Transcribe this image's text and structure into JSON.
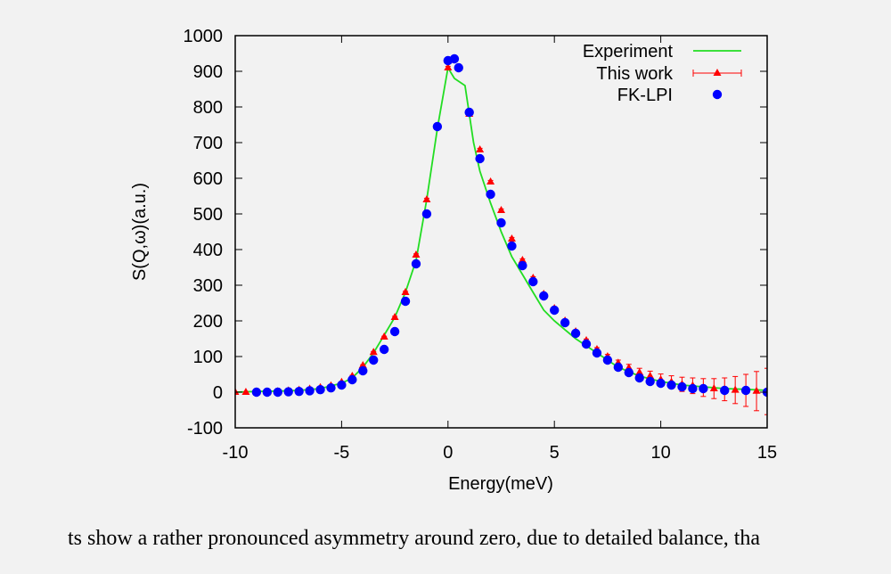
{
  "chart_data": {
    "type": "scatter",
    "xlabel": "Energy(meV)",
    "ylabel": "S(Q,ω)(a.u.)",
    "xlim": [
      -10,
      15
    ],
    "ylim": [
      -100,
      1000
    ],
    "xticks": [
      "-10",
      "-5",
      "0",
      "5",
      "10",
      "15"
    ],
    "yticks": [
      "-100",
      "0",
      "100",
      "200",
      "300",
      "400",
      "500",
      "600",
      "700",
      "800",
      "900",
      "1000"
    ],
    "grid": false,
    "legend_position": "top-right",
    "colors": {
      "experiment": "#22dd22",
      "this_work": "#ff0000",
      "fk_lpi": "#0000ff"
    },
    "series": [
      {
        "name": "Experiment",
        "style": "line",
        "x": [
          -10,
          -9,
          -8,
          -7,
          -6,
          -5,
          -4.5,
          -4,
          -3.5,
          -3,
          -2.5,
          -2,
          -1.5,
          -1,
          -0.5,
          0,
          0.3,
          0.8,
          1.2,
          1.5,
          2,
          2.5,
          3,
          3.5,
          4,
          4.5,
          5,
          6,
          7,
          8,
          9,
          10,
          11,
          12,
          13,
          14,
          15
        ],
        "y": [
          0,
          2,
          3,
          5,
          10,
          25,
          40,
          70,
          110,
          160,
          210,
          280,
          370,
          540,
          740,
          910,
          880,
          860,
          700,
          620,
          530,
          450,
          380,
          330,
          280,
          230,
          200,
          150,
          110,
          70,
          45,
          30,
          20,
          15,
          10,
          8,
          5
        ]
      },
      {
        "name": "This work",
        "style": "triangles-errorbars",
        "x": [
          -10,
          -9.5,
          -9,
          -8.5,
          -8,
          -7.5,
          -7,
          -6.5,
          -6,
          -5.5,
          -5,
          -4.5,
          -4,
          -3.5,
          -3,
          -2.5,
          -2,
          -1.5,
          -1,
          -0.5,
          0,
          0.5,
          1,
          1.5,
          2,
          2.5,
          3,
          3.5,
          4,
          4.5,
          5,
          5.5,
          6,
          6.5,
          7,
          7.5,
          8,
          8.5,
          9,
          9.5,
          10,
          10.5,
          11,
          11.5,
          12,
          12.5,
          13,
          13.5,
          14,
          14.5,
          15
        ],
        "y": [
          0,
          0,
          1,
          1,
          2,
          4,
          6,
          9,
          13,
          18,
          28,
          45,
          75,
          112,
          155,
          210,
          280,
          385,
          540,
          745,
          910,
          910,
          780,
          680,
          590,
          510,
          430,
          370,
          320,
          275,
          235,
          200,
          170,
          145,
          120,
          100,
          82,
          68,
          55,
          45,
          35,
          28,
          22,
          18,
          13,
          10,
          8,
          6,
          5,
          3,
          2
        ],
        "yerr": [
          1,
          1,
          1,
          1,
          1,
          1,
          1,
          1,
          1,
          1,
          2,
          2,
          2,
          2,
          2,
          3,
          3,
          3,
          4,
          4,
          4,
          4,
          4,
          4,
          4,
          4,
          4,
          4,
          4,
          4,
          4,
          4,
          4,
          4,
          5,
          6,
          8,
          10,
          12,
          14,
          16,
          18,
          20,
          22,
          25,
          28,
          32,
          38,
          45,
          55,
          65
        ]
      },
      {
        "name": "FK-LPI",
        "style": "circles",
        "x": [
          -9,
          -8.5,
          -8,
          -7.5,
          -7,
          -6.5,
          -6,
          -5.5,
          -5,
          -4.5,
          -4,
          -3.5,
          -3,
          -2.5,
          -2,
          -1.5,
          -1,
          -0.5,
          0,
          0.3,
          0.5,
          1,
          1.5,
          2,
          2.5,
          3,
          3.5,
          4,
          4.5,
          5,
          5.5,
          6,
          6.5,
          7,
          7.5,
          8,
          8.5,
          9,
          9.5,
          10,
          10.5,
          11,
          11.5,
          12,
          13,
          14,
          15
        ],
        "y": [
          0,
          0,
          0,
          1,
          2,
          4,
          7,
          12,
          20,
          35,
          60,
          90,
          120,
          170,
          255,
          360,
          500,
          745,
          930,
          935,
          910,
          785,
          655,
          555,
          475,
          410,
          355,
          310,
          270,
          230,
          195,
          165,
          135,
          110,
          90,
          70,
          55,
          40,
          30,
          25,
          20,
          15,
          10,
          10,
          5,
          5,
          0
        ]
      }
    ]
  },
  "caption": "ts show a rather pronounced asymmetry around zero, due to detailed balance, tha"
}
